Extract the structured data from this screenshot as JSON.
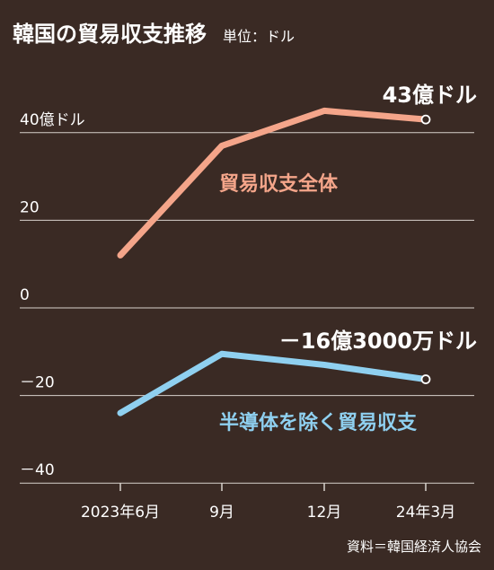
{
  "chart_data": {
    "type": "line",
    "title": "韓国の貿易収支推移",
    "unit_label": "単位：ドル",
    "categories": [
      "2023年6月",
      "9月",
      "12月",
      "24年3月"
    ],
    "ylim": [
      -40,
      43
    ],
    "yticks": [
      {
        "value": 40,
        "label": "40億ドル"
      },
      {
        "value": 20,
        "label": "20"
      },
      {
        "value": 0,
        "label": "0"
      },
      {
        "value": -20,
        "label": "－20"
      },
      {
        "value": -40,
        "label": "－40"
      }
    ],
    "series": [
      {
        "name": "貿易収支全体",
        "values": [
          12,
          37,
          45,
          43
        ],
        "color": "#f4a58a",
        "end_label": "43億ドル"
      },
      {
        "name": "半導体を除く貿易収支",
        "values": [
          -24,
          -10.5,
          -13,
          -16.3
        ],
        "color": "#8fd0f0",
        "end_label": "－16億3000万ドル"
      }
    ],
    "source": "資料＝韓国経済人協会",
    "grid": true
  }
}
